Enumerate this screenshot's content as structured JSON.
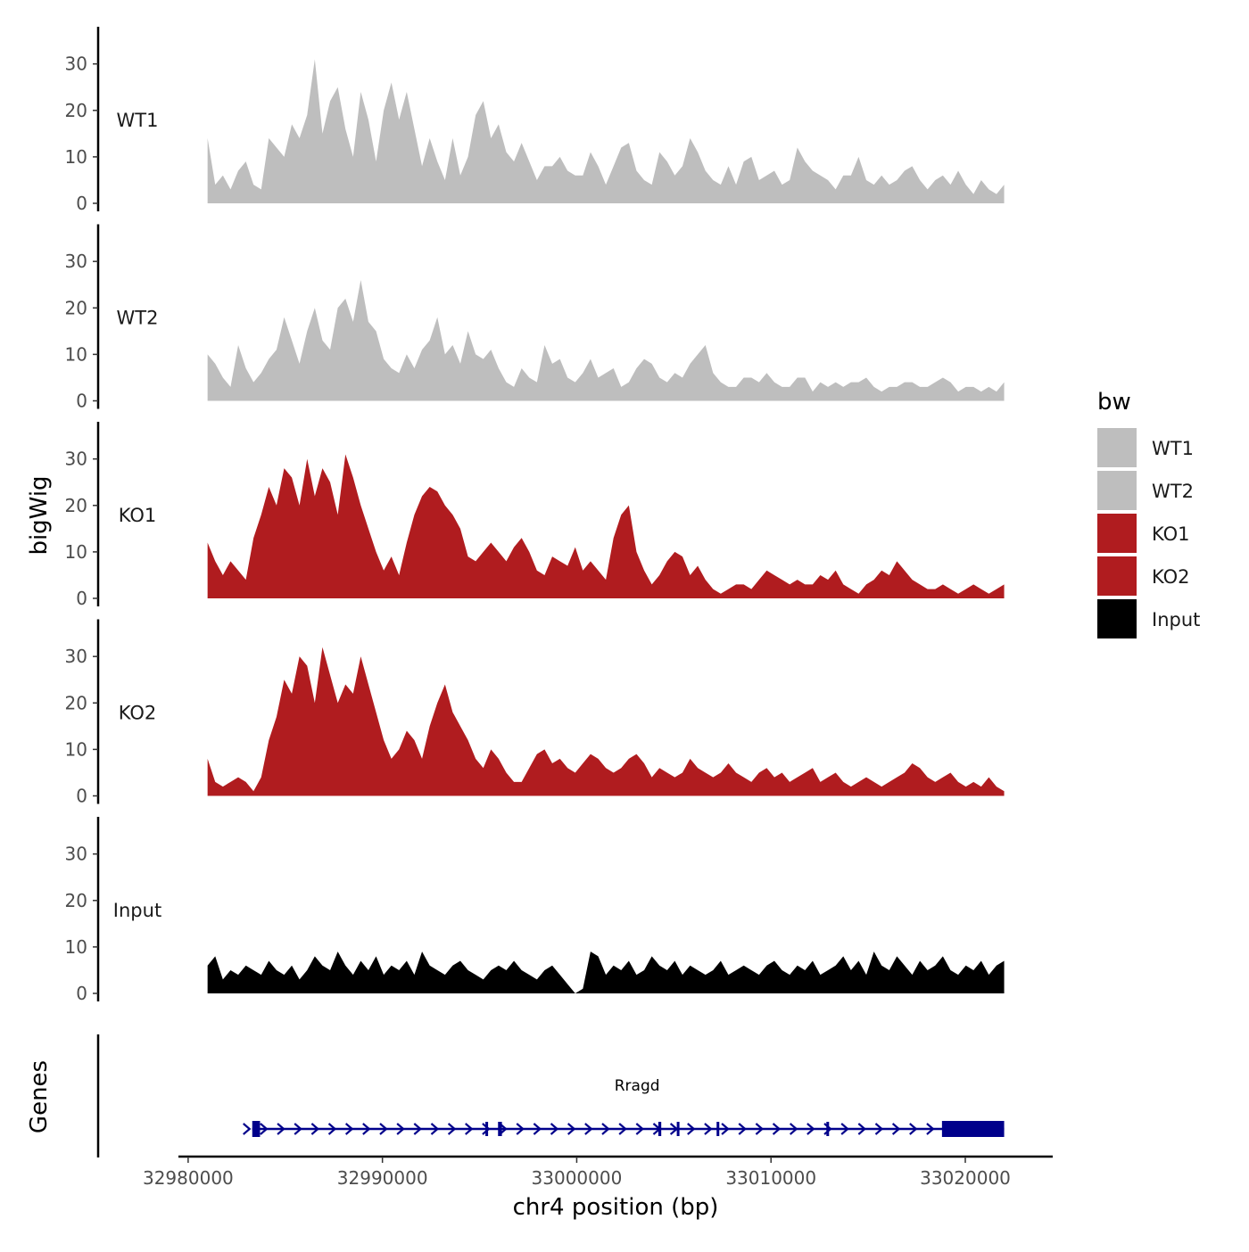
{
  "chart_data": {
    "type": "area",
    "ylabel": "bigWig",
    "xlabel": "chr4 position (bp)",
    "genes_label": "Genes",
    "x_range": [
      32981000,
      33022000
    ],
    "xlim": [
      32979500,
      33024500
    ],
    "ylim": [
      0,
      38
    ],
    "y_ticks": [
      {
        "value": 0,
        "label": "0"
      },
      {
        "value": 10,
        "label": "10"
      },
      {
        "value": 20,
        "label": "20"
      },
      {
        "value": 30,
        "label": "30"
      }
    ],
    "x_ticks": [
      {
        "value": 32980000,
        "label": "32980000"
      },
      {
        "value": 32990000,
        "label": "32990000"
      },
      {
        "value": 33000000,
        "label": "33000000"
      },
      {
        "value": 33010000,
        "label": "33010000"
      },
      {
        "value": 33020000,
        "label": "33020000"
      }
    ],
    "legend": {
      "title": "bw",
      "position": "right",
      "entries": [
        {
          "label": "WT1",
          "color": "#bebebe"
        },
        {
          "label": "WT2",
          "color": "#bebebe"
        },
        {
          "label": "KO1",
          "color": "#b01c1f"
        },
        {
          "label": "KO2",
          "color": "#b01c1f"
        },
        {
          "label": "Input",
          "color": "#000000"
        }
      ]
    },
    "series": [
      {
        "name": "WT1",
        "color": "#bebebe",
        "values": [
          14,
          4,
          6,
          3,
          7,
          9,
          4,
          3,
          14,
          12,
          10,
          17,
          14,
          19,
          31,
          15,
          22,
          25,
          16,
          10,
          24,
          18,
          9,
          20,
          26,
          18,
          24,
          16,
          8,
          14,
          9,
          5,
          14,
          6,
          10,
          19,
          22,
          14,
          17,
          11,
          9,
          13,
          9,
          5,
          8,
          8,
          10,
          7,
          6,
          6,
          11,
          8,
          4,
          8,
          12,
          13,
          7,
          5,
          4,
          11,
          9,
          6,
          8,
          14,
          11,
          7,
          5,
          4,
          8,
          4,
          9,
          10,
          5,
          6,
          7,
          4,
          5,
          12,
          9,
          7,
          6,
          5,
          3,
          6,
          6,
          10,
          5,
          4,
          6,
          4,
          5,
          7,
          8,
          5,
          3,
          5,
          6,
          4,
          7,
          4,
          2,
          5,
          3,
          2,
          4
        ]
      },
      {
        "name": "WT2",
        "color": "#bebebe",
        "values": [
          10,
          8,
          5,
          3,
          12,
          7,
          4,
          6,
          9,
          11,
          18,
          13,
          8,
          15,
          20,
          13,
          11,
          20,
          22,
          17,
          26,
          17,
          15,
          9,
          7,
          6,
          10,
          7,
          11,
          13,
          18,
          10,
          12,
          8,
          15,
          10,
          9,
          11,
          7,
          4,
          3,
          7,
          5,
          4,
          12,
          8,
          9,
          5,
          4,
          6,
          9,
          5,
          6,
          7,
          3,
          4,
          7,
          9,
          8,
          5,
          4,
          6,
          5,
          8,
          10,
          12,
          6,
          4,
          3,
          3,
          5,
          5,
          4,
          6,
          4,
          3,
          3,
          5,
          5,
          2,
          4,
          3,
          4,
          3,
          4,
          4,
          5,
          3,
          2,
          3,
          3,
          4,
          4,
          3,
          3,
          4,
          5,
          4,
          2,
          3,
          3,
          2,
          3,
          2,
          4
        ]
      },
      {
        "name": "KO1",
        "color": "#b01c1f",
        "values": [
          12,
          8,
          5,
          8,
          6,
          4,
          13,
          18,
          24,
          20,
          28,
          26,
          20,
          30,
          22,
          28,
          25,
          18,
          31,
          26,
          20,
          15,
          10,
          6,
          9,
          5,
          12,
          18,
          22,
          24,
          23,
          20,
          18,
          15,
          9,
          8,
          10,
          12,
          10,
          8,
          11,
          13,
          10,
          6,
          5,
          9,
          8,
          7,
          11,
          6,
          8,
          6,
          4,
          13,
          18,
          20,
          10,
          6,
          3,
          5,
          8,
          10,
          9,
          5,
          7,
          4,
          2,
          1,
          2,
          3,
          3,
          2,
          4,
          6,
          5,
          4,
          3,
          4,
          3,
          3,
          5,
          4,
          6,
          3,
          2,
          1,
          3,
          4,
          6,
          5,
          8,
          6,
          4,
          3,
          2,
          2,
          3,
          2,
          1,
          2,
          3,
          2,
          1,
          2,
          3
        ]
      },
      {
        "name": "KO2",
        "color": "#b01c1f",
        "values": [
          8,
          3,
          2,
          3,
          4,
          3,
          1,
          4,
          12,
          17,
          25,
          22,
          30,
          28,
          20,
          32,
          26,
          20,
          24,
          22,
          30,
          24,
          18,
          12,
          8,
          10,
          14,
          12,
          8,
          15,
          20,
          24,
          18,
          15,
          12,
          8,
          6,
          10,
          8,
          5,
          3,
          3,
          6,
          9,
          10,
          7,
          8,
          6,
          5,
          7,
          9,
          8,
          6,
          5,
          6,
          8,
          9,
          7,
          4,
          6,
          5,
          4,
          5,
          8,
          6,
          5,
          4,
          5,
          7,
          5,
          4,
          3,
          5,
          6,
          4,
          5,
          3,
          4,
          5,
          6,
          3,
          4,
          5,
          3,
          2,
          3,
          4,
          3,
          2,
          3,
          4,
          5,
          7,
          6,
          4,
          3,
          4,
          5,
          3,
          2,
          3,
          2,
          4,
          2,
          1
        ]
      },
      {
        "name": "Input",
        "color": "#000000",
        "values": [
          6,
          8,
          3,
          5,
          4,
          6,
          5,
          4,
          7,
          5,
          4,
          6,
          3,
          5,
          8,
          6,
          5,
          9,
          6,
          4,
          7,
          5,
          8,
          4,
          6,
          5,
          7,
          4,
          9,
          6,
          5,
          4,
          6,
          7,
          5,
          4,
          3,
          5,
          6,
          5,
          7,
          5,
          4,
          3,
          5,
          6,
          4,
          2,
          0,
          1,
          9,
          8,
          4,
          6,
          5,
          7,
          4,
          5,
          8,
          6,
          5,
          7,
          4,
          6,
          5,
          4,
          5,
          7,
          4,
          5,
          6,
          5,
          4,
          6,
          7,
          5,
          4,
          6,
          5,
          7,
          4,
          5,
          6,
          8,
          5,
          7,
          4,
          9,
          6,
          5,
          8,
          6,
          4,
          7,
          5,
          6,
          8,
          5,
          4,
          6,
          5,
          7,
          4,
          6,
          7
        ]
      }
    ],
    "gene": {
      "name": "Rragd",
      "color": "#00008b",
      "strand": "+",
      "start": 32983300,
      "end": 33022000,
      "exons": [
        {
          "start": 32983300,
          "end": 32983700
        },
        {
          "start": 32995300,
          "end": 32995400
        },
        {
          "start": 32995950,
          "end": 32996150
        },
        {
          "start": 33004200,
          "end": 33004350
        },
        {
          "start": 33005150,
          "end": 33005250
        },
        {
          "start": 33007200,
          "end": 33007300
        },
        {
          "start": 33012850,
          "end": 33012950
        },
        {
          "start": 33018800,
          "end": 33022000
        }
      ]
    }
  }
}
